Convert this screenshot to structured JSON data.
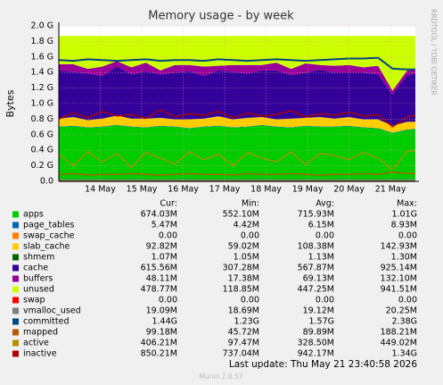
{
  "chart_data": {
    "type": "area",
    "title": "Memory usage - by week",
    "y_label": "Bytes",
    "side_text": "RRDTOOL / TOBI OETIKER",
    "footer": "Last update: Thu May 21 23:40:58 2026",
    "version": "Munin 2.0.57",
    "columns": [
      "Cur:",
      "Min:",
      "Avg:",
      "Max:"
    ],
    "grid": true,
    "xlim": [
      13.0,
      21.6
    ],
    "xticks": [
      {
        "value": 14,
        "label": "14 May"
      },
      {
        "value": 15,
        "label": "15 May"
      },
      {
        "value": 16,
        "label": "16 May"
      },
      {
        "value": 17,
        "label": "17 May"
      },
      {
        "value": 18,
        "label": "18 May"
      },
      {
        "value": 19,
        "label": "19 May"
      },
      {
        "value": 20,
        "label": "20 May"
      },
      {
        "value": 21,
        "label": "21 May"
      }
    ],
    "ylim": [
      0,
      2.0
    ],
    "yticks": [
      {
        "value": 0,
        "label": "0.0"
      },
      {
        "value": 0.2,
        "label": "0.2 G"
      },
      {
        "value": 0.4,
        "label": "0.4 G"
      },
      {
        "value": 0.6,
        "label": "0.6 G"
      },
      {
        "value": 0.8,
        "label": "0.8 G"
      },
      {
        "value": 1.0,
        "label": "1.0 G"
      },
      {
        "value": 1.2,
        "label": "1.2 G"
      },
      {
        "value": 1.4,
        "label": "1.4 G"
      },
      {
        "value": 1.6,
        "label": "1.6 G"
      },
      {
        "value": 1.8,
        "label": "1.8 G"
      },
      {
        "value": 2.0,
        "label": "2.0 G"
      }
    ],
    "x": [
      13.0,
      13.35,
      13.7,
      14.05,
      14.4,
      14.75,
      15.1,
      15.45,
      15.8,
      16.15,
      16.5,
      16.85,
      17.2,
      17.55,
      17.9,
      18.25,
      18.6,
      18.95,
      19.3,
      19.65,
      20.0,
      20.35,
      20.7,
      21.05,
      21.4,
      21.6
    ],
    "series": [
      {
        "name": "apps",
        "style": "area",
        "color": "#00cc00",
        "cur": "674.03M",
        "min": "552.10M",
        "avg": "715.93M",
        "max": "1.01G",
        "values": [
          0.7,
          0.71,
          0.69,
          0.7,
          0.72,
          0.7,
          0.69,
          0.71,
          0.7,
          0.68,
          0.7,
          0.71,
          0.69,
          0.7,
          0.72,
          0.7,
          0.69,
          0.71,
          0.7,
          0.7,
          0.71,
          0.69,
          0.68,
          0.62,
          0.66,
          0.67
        ]
      },
      {
        "name": "page_tables",
        "style": "area",
        "color": "#0066b3",
        "cur": "5.47M",
        "min": "4.42M",
        "avg": "6.15M",
        "max": "8.93M",
        "values": [
          0.006,
          0.006,
          0.006,
          0.006,
          0.006,
          0.006,
          0.006,
          0.006,
          0.006,
          0.006,
          0.006,
          0.006,
          0.006,
          0.006,
          0.006,
          0.006,
          0.006,
          0.006,
          0.006,
          0.006,
          0.006,
          0.006,
          0.006,
          0.006,
          0.006,
          0.006
        ]
      },
      {
        "name": "swap_cache",
        "style": "area",
        "color": "#ff8000",
        "cur": "0.00",
        "min": "0.00",
        "avg": "0.00",
        "max": "0.00",
        "values": [
          0,
          0,
          0,
          0,
          0,
          0,
          0,
          0,
          0,
          0,
          0,
          0,
          0,
          0,
          0,
          0,
          0,
          0,
          0,
          0,
          0,
          0,
          0,
          0,
          0,
          0
        ]
      },
      {
        "name": "slab_cache",
        "style": "area",
        "color": "#ffcc00",
        "cur": "92.82M",
        "min": "59.02M",
        "avg": "108.38M",
        "max": "142.93M",
        "values": [
          0.1,
          0.11,
          0.09,
          0.1,
          0.12,
          0.1,
          0.11,
          0.1,
          0.09,
          0.11,
          0.1,
          0.12,
          0.1,
          0.11,
          0.1,
          0.09,
          0.11,
          0.1,
          0.12,
          0.1,
          0.11,
          0.1,
          0.11,
          0.09,
          0.1,
          0.09
        ]
      },
      {
        "name": "shmem",
        "style": "area",
        "color": "#006600",
        "cur": "1.07M",
        "min": "1.05M",
        "avg": "1.13M",
        "max": "1.30M",
        "values": [
          0.001,
          0.001,
          0.001,
          0.001,
          0.001,
          0.001,
          0.001,
          0.001,
          0.001,
          0.001,
          0.001,
          0.001,
          0.001,
          0.001,
          0.001,
          0.001,
          0.001,
          0.001,
          0.001,
          0.001,
          0.001,
          0.001,
          0.001,
          0.001,
          0.001,
          0.001
        ]
      },
      {
        "name": "cache",
        "style": "area",
        "color": "#330099",
        "cur": "615.56M",
        "min": "307.28M",
        "avg": "567.87M",
        "max": "925.14M",
        "values": [
          0.62,
          0.58,
          0.6,
          0.55,
          0.63,
          0.57,
          0.61,
          0.56,
          0.6,
          0.62,
          0.55,
          0.59,
          0.61,
          0.57,
          0.6,
          0.63,
          0.56,
          0.58,
          0.61,
          0.59,
          0.57,
          0.6,
          0.58,
          0.4,
          0.6,
          0.62
        ]
      },
      {
        "name": "buffers",
        "style": "area",
        "color": "#990099",
        "cur": "48.11M",
        "min": "17.38M",
        "avg": "69.13M",
        "max": "132.10M",
        "values": [
          0.08,
          0.1,
          0.06,
          0.12,
          0.07,
          0.09,
          0.11,
          0.05,
          0.1,
          0.08,
          0.12,
          0.06,
          0.09,
          0.11,
          0.07,
          0.1,
          0.08,
          0.12,
          0.06,
          0.09,
          0.1,
          0.07,
          0.11,
          0.05,
          0.06,
          0.05
        ]
      },
      {
        "name": "unused",
        "style": "area",
        "color": "#ccff00",
        "cur": "478.77M",
        "min": "118.85M",
        "avg": "447.25M",
        "max": "941.51M",
        "values": [
          0.363,
          0.363,
          0.423,
          0.393,
          0.323,
          0.403,
          0.343,
          0.443,
          0.373,
          0.373,
          0.393,
          0.383,
          0.373,
          0.373,
          0.373,
          0.343,
          0.423,
          0.353,
          0.373,
          0.383,
          0.373,
          0.403,
          0.383,
          0.703,
          0.443,
          0.433
        ]
      },
      {
        "name": "swap",
        "style": "line",
        "color": "#ff0000",
        "cur": "0.00",
        "min": "0.00",
        "avg": "0.00",
        "max": "0.00",
        "values": [
          0,
          0,
          0,
          0,
          0,
          0,
          0,
          0,
          0,
          0,
          0,
          0,
          0,
          0,
          0,
          0,
          0,
          0,
          0,
          0,
          0,
          0,
          0,
          0,
          0,
          0
        ]
      },
      {
        "name": "vmalloc_used",
        "style": "line",
        "color": "#808080",
        "cur": "19.09M",
        "min": "18.69M",
        "avg": "19.12M",
        "max": "20.25M",
        "values": [
          0.019,
          0.019,
          0.019,
          0.019,
          0.019,
          0.019,
          0.019,
          0.019,
          0.019,
          0.019,
          0.019,
          0.019,
          0.019,
          0.019,
          0.019,
          0.019,
          0.019,
          0.019,
          0.019,
          0.019,
          0.019,
          0.019,
          0.019,
          0.019,
          0.019,
          0.019
        ]
      },
      {
        "name": "committed",
        "style": "line",
        "color": "#00487d",
        "cur": "1.44G",
        "min": "1.23G",
        "avg": "1.57G",
        "max": "2.38G",
        "values": [
          1.56,
          1.55,
          1.57,
          1.56,
          1.55,
          1.56,
          1.57,
          1.55,
          1.56,
          1.56,
          1.55,
          1.57,
          1.56,
          1.55,
          1.56,
          1.57,
          1.56,
          1.55,
          1.56,
          1.57,
          1.58,
          1.58,
          1.59,
          1.45,
          1.44,
          1.44
        ]
      },
      {
        "name": "mapped",
        "style": "line",
        "color": "#b35a00",
        "cur": "99.18M",
        "min": "45.72M",
        "avg": "89.89M",
        "max": "188.21M",
        "values": [
          0.09,
          0.1,
          0.08,
          0.09,
          0.09,
          0.1,
          0.09,
          0.08,
          0.09,
          0.1,
          0.09,
          0.09,
          0.08,
          0.1,
          0.09,
          0.09,
          0.1,
          0.09,
          0.08,
          0.09,
          0.09,
          0.1,
          0.09,
          0.12,
          0.1,
          0.1
        ]
      },
      {
        "name": "active",
        "style": "line",
        "color": "#b38f00",
        "cur": "406.21M",
        "min": "97.47M",
        "avg": "328.50M",
        "max": "449.02M",
        "values": [
          0.35,
          0.2,
          0.38,
          0.25,
          0.36,
          0.18,
          0.37,
          0.3,
          0.22,
          0.38,
          0.28,
          0.35,
          0.2,
          0.37,
          0.3,
          0.25,
          0.38,
          0.22,
          0.36,
          0.33,
          0.28,
          0.37,
          0.3,
          0.15,
          0.38,
          0.4
        ]
      },
      {
        "name": "inactive",
        "style": "line",
        "color": "#b30000",
        "cur": "850.21M",
        "min": "737.04M",
        "avg": "942.17M",
        "max": "1.34G",
        "values": [
          0.8,
          0.88,
          0.82,
          0.9,
          0.84,
          0.86,
          0.81,
          0.92,
          0.83,
          0.87,
          0.85,
          0.9,
          0.82,
          0.88,
          0.84,
          0.86,
          0.91,
          0.83,
          0.87,
          0.85,
          0.89,
          0.84,
          0.86,
          0.7,
          0.83,
          0.85
        ]
      }
    ]
  }
}
